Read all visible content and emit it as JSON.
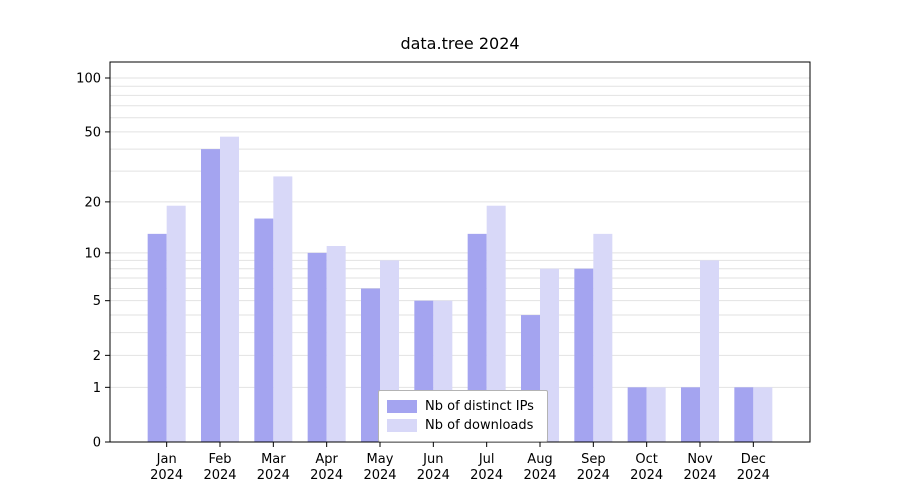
{
  "chart_data": {
    "type": "bar",
    "title": "data.tree 2024",
    "categories": [
      {
        "month": "Jan",
        "year": "2024"
      },
      {
        "month": "Feb",
        "year": "2024"
      },
      {
        "month": "Mar",
        "year": "2024"
      },
      {
        "month": "Apr",
        "year": "2024"
      },
      {
        "month": "May",
        "year": "2024"
      },
      {
        "month": "Jun",
        "year": "2024"
      },
      {
        "month": "Jul",
        "year": "2024"
      },
      {
        "month": "Aug",
        "year": "2024"
      },
      {
        "month": "Sep",
        "year": "2024"
      },
      {
        "month": "Oct",
        "year": "2024"
      },
      {
        "month": "Nov",
        "year": "2024"
      },
      {
        "month": "Dec",
        "year": "2024"
      }
    ],
    "series": [
      {
        "name": "Nb of distinct IPs",
        "color": "#a4a4f0",
        "values": [
          13,
          40,
          16,
          10,
          6,
          5,
          13,
          4,
          8,
          1,
          1,
          1
        ]
      },
      {
        "name": "Nb of downloads",
        "color": "#d8d8f8",
        "values": [
          19,
          47,
          28,
          11,
          9,
          5,
          19,
          8,
          13,
          1,
          9,
          1
        ]
      }
    ],
    "yticks": [
      0,
      1,
      2,
      5,
      10,
      20,
      50,
      100
    ],
    "grid_values": [
      1,
      2,
      3,
      4,
      5,
      6,
      7,
      8,
      9,
      10,
      20,
      30,
      40,
      50,
      60,
      70,
      80,
      90,
      100
    ],
    "scale": "log1p",
    "ylim": [
      0,
      100
    ],
    "grid": true,
    "legend_position": "bottom-center-inside",
    "grid_color": "#e2e2e2",
    "axis_color": "#000000",
    "background_color": "#ffffff"
  }
}
